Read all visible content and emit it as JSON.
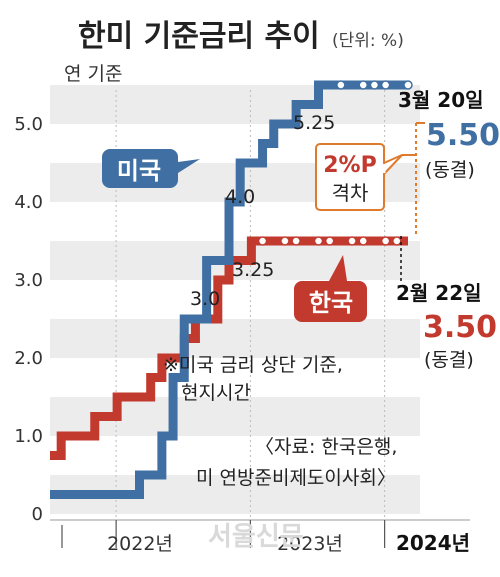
{
  "title": "한미 기준금리 추이",
  "unit": "(단위: %)",
  "basis": "연 기준",
  "chart_data": {
    "type": "line",
    "y_ticks": [
      "0",
      "1.0",
      "2.0",
      "3.0",
      "4.0",
      "5.0"
    ],
    "ylim": [
      0,
      5.5
    ],
    "grid": "horizontal bands",
    "x_years": [
      "2022년",
      "2023년",
      "2024년"
    ],
    "series": [
      {
        "name": "미국",
        "color": "#3F6FA3",
        "steps": [
          {
            "date": "2021-07",
            "value": 0.25
          },
          {
            "date": "2022-03",
            "value": 0.5
          },
          {
            "date": "2022-05",
            "value": 1.0
          },
          {
            "date": "2022-06",
            "value": 1.75
          },
          {
            "date": "2022-07",
            "value": 2.5
          },
          {
            "date": "2022-09",
            "value": 3.25
          },
          {
            "date": "2022-11",
            "value": 4.0
          },
          {
            "date": "2022-12",
            "value": 4.5
          },
          {
            "date": "2023-02",
            "value": 4.75
          },
          {
            "date": "2023-03",
            "value": 5.0
          },
          {
            "date": "2023-05",
            "value": 5.25
          },
          {
            "date": "2023-07",
            "value": 5.5
          },
          {
            "date": "2024-03",
            "value": 5.5
          }
        ],
        "hold_markers": [
          "2023-09",
          "2023-11",
          "2023-12",
          "2024-01",
          "2024-03"
        ]
      },
      {
        "name": "한국",
        "color": "#C2392E",
        "steps": [
          {
            "date": "2021-07",
            "value": 0.75
          },
          {
            "date": "2021-08",
            "value": 1.0
          },
          {
            "date": "2021-11",
            "value": 1.25
          },
          {
            "date": "2022-01",
            "value": 1.5
          },
          {
            "date": "2022-04",
            "value": 1.75
          },
          {
            "date": "2022-05",
            "value": 2.0
          },
          {
            "date": "2022-07",
            "value": 2.25
          },
          {
            "date": "2022-08",
            "value": 2.5
          },
          {
            "date": "2022-10",
            "value": 3.0
          },
          {
            "date": "2022-11",
            "value": 3.25
          },
          {
            "date": "2023-01",
            "value": 3.5
          },
          {
            "date": "2024-03",
            "value": 3.5
          }
        ],
        "hold_markers": [
          "2023-02",
          "2023-04",
          "2023-05",
          "2023-07",
          "2023-08",
          "2023-10",
          "2023-11",
          "2024-01",
          "2024-02"
        ]
      }
    ],
    "annotations": {
      "us_value_labels": [
        "4.0",
        "5.25"
      ],
      "kr_value_labels": [
        "3.0",
        "3.25"
      ],
      "us_tag": "미국",
      "kr_tag": "한국",
      "gap_value": "2%P",
      "gap_label": "격차",
      "us_date": "3월 20일",
      "us_rate": "5.50",
      "us_status": "(동결)",
      "kr_date": "2월 22일",
      "kr_rate": "3.50",
      "kr_status": "(동결)",
      "note_line1": "※미국 금리 상단 기준,",
      "note_line2": "현지시간",
      "source_line1": "〈자료: 한국은행,",
      "source_line2": "미 연방준비제도이사회〉",
      "watermark": "서울신문"
    }
  }
}
